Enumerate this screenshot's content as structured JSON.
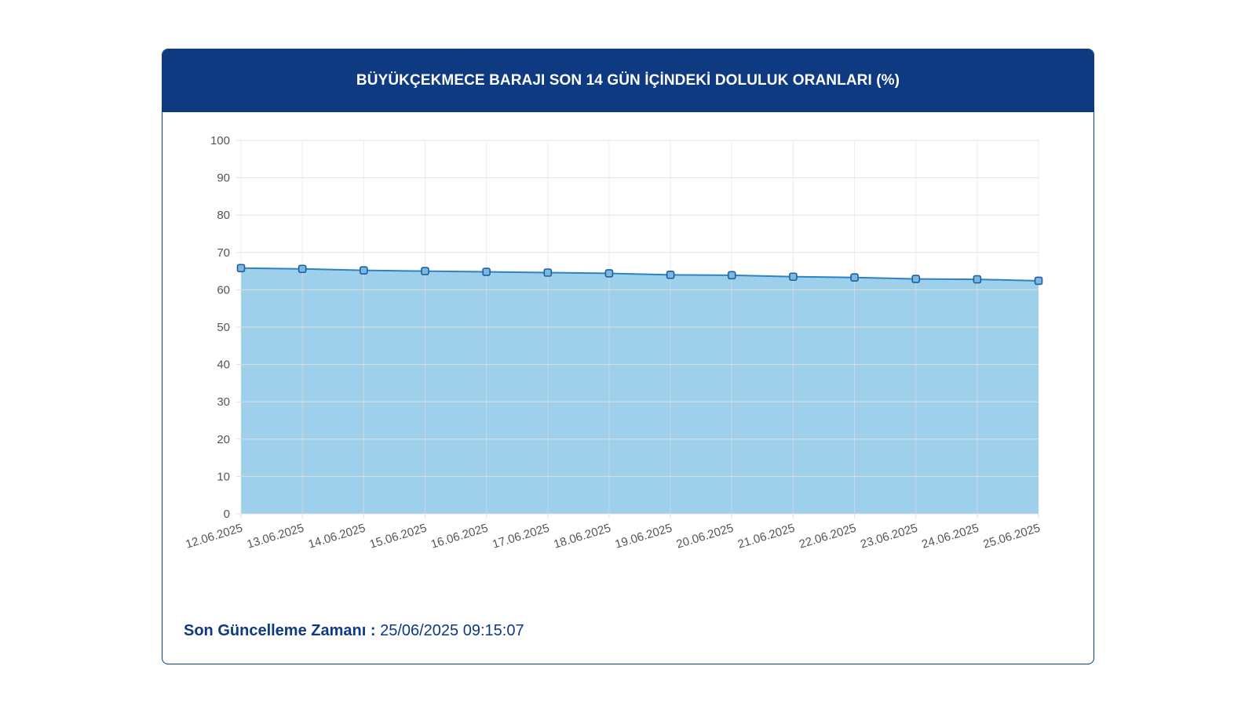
{
  "header": {
    "title": "BÜYÜKÇEKMECE BARAJI SON 14 GÜN İÇİNDEKİ DOLULUK ORANLARI (%)"
  },
  "footer": {
    "label": "Son Güncelleme Zamanı :",
    "value": " 25/06/2025 09:15:07"
  },
  "colors": {
    "header_bg": "#0e3a82",
    "line": "#2c83c3",
    "fill": "#9ed0ec",
    "point_fill": "#7bb8e0",
    "point_stroke": "#1f5fa0",
    "grid": "#e0e0e0",
    "tick_text": "#555555"
  },
  "chart_data": {
    "type": "area",
    "categories": [
      "12.06.2025",
      "13.06.2025",
      "14.06.2025",
      "15.06.2025",
      "16.06.2025",
      "17.06.2025",
      "18.06.2025",
      "19.06.2025",
      "20.06.2025",
      "21.06.2025",
      "22.06.2025",
      "23.06.2025",
      "24.06.2025",
      "25.06.2025"
    ],
    "series": [
      {
        "values": [
          65.8,
          65.6,
          65.2,
          65.0,
          64.8,
          64.6,
          64.4,
          64.0,
          63.9,
          63.5,
          63.3,
          62.9,
          62.8,
          62.4
        ]
      }
    ],
    "yticks": [
      0,
      10,
      20,
      30,
      40,
      50,
      60,
      70,
      80,
      90,
      100
    ],
    "ylim": [
      0,
      100
    ],
    "grid": true,
    "legend": "none"
  }
}
